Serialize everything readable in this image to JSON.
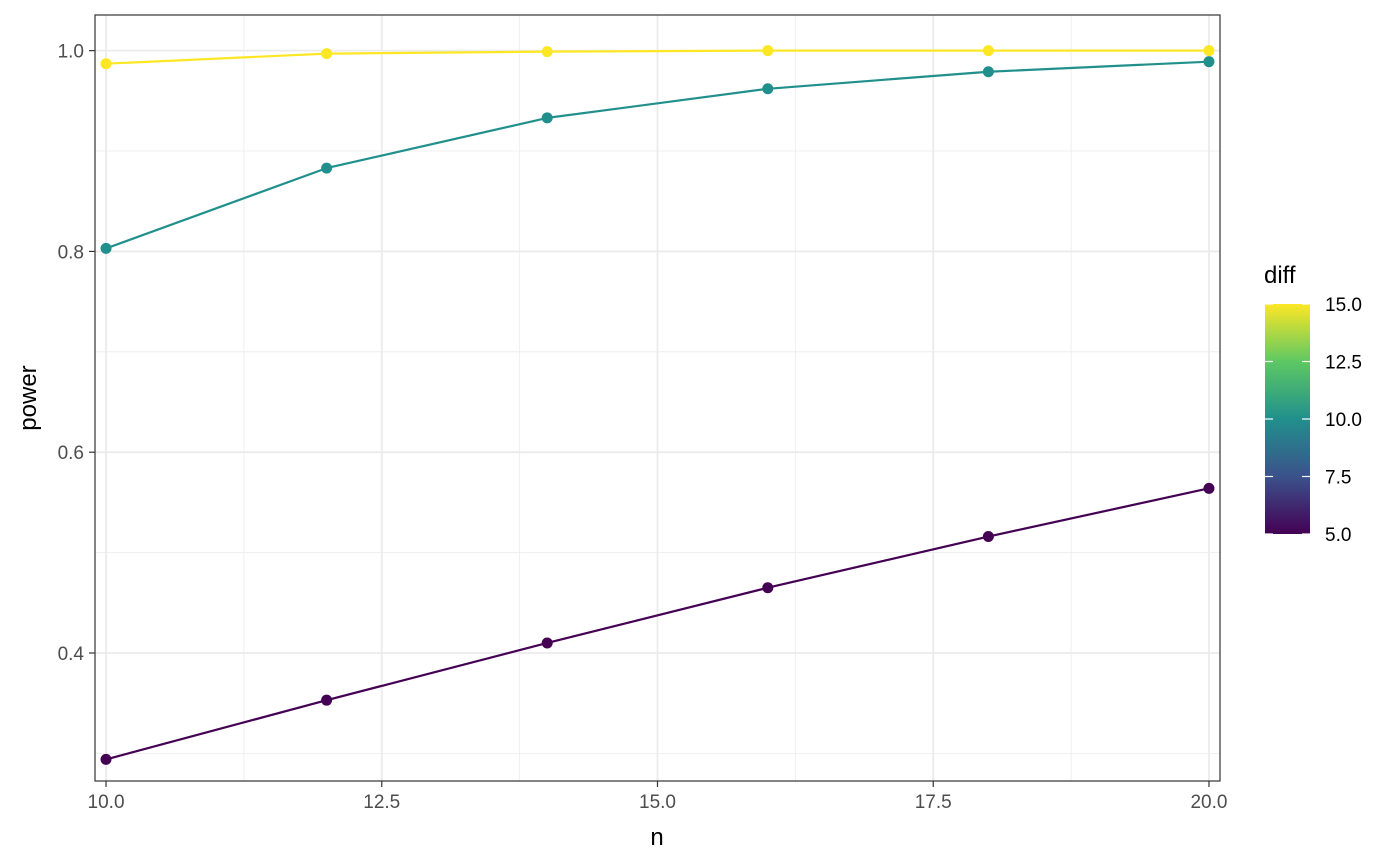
{
  "chart_data": {
    "type": "line",
    "xlabel": "n",
    "ylabel": "power",
    "xlim": [
      9.9,
      20.1
    ],
    "ylim": [
      0.2725,
      1.0355
    ],
    "x_ticks": [
      10.0,
      12.5,
      15.0,
      17.5,
      20.0
    ],
    "x_tick_labels": [
      "10.0",
      "12.5",
      "15.0",
      "17.5",
      "20.0"
    ],
    "y_ticks": [
      0.4,
      0.6,
      0.8,
      1.0
    ],
    "y_tick_labels": [
      "0.4",
      "0.6",
      "0.8",
      "1.0"
    ],
    "grid": true,
    "markers": true,
    "x": [
      10,
      12,
      14,
      16,
      18,
      20
    ],
    "series": [
      {
        "diff": 5,
        "color": "#440154",
        "values": [
          0.294,
          0.353,
          0.41,
          0.465,
          0.516,
          0.564
        ]
      },
      {
        "diff": 10,
        "color": "#21908C",
        "values": [
          0.803,
          0.883,
          0.933,
          0.962,
          0.979,
          0.989
        ]
      },
      {
        "diff": 15,
        "color": "#FDE725",
        "values": [
          0.987,
          0.997,
          0.999,
          1.0,
          1.0,
          1.0
        ]
      }
    ],
    "legend": {
      "title": "diff",
      "type": "colorbar",
      "placement": "right",
      "range": [
        5,
        15
      ],
      "breaks": [
        5.0,
        7.5,
        10.0,
        12.5,
        15.0
      ],
      "labels": [
        "5.0",
        "7.5",
        "10.0",
        "12.5",
        "15.0"
      ],
      "colors": [
        "#440154",
        "#3B528B",
        "#21908C",
        "#5DC863",
        "#FDE725"
      ]
    }
  }
}
